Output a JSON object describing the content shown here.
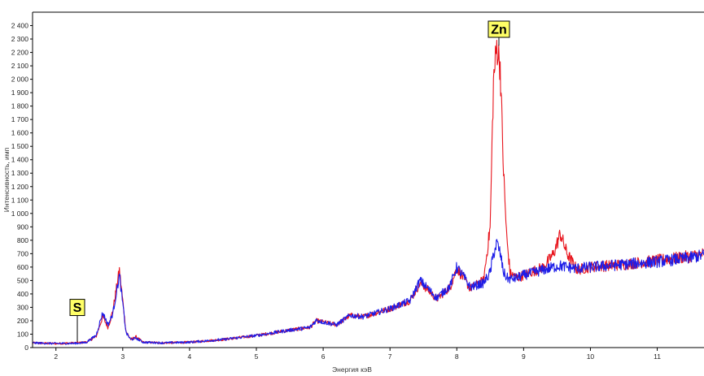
{
  "chart_data": {
    "type": "line",
    "title": "",
    "xlabel": "Энергия кэВ",
    "ylabel": "Интенсивность, имп",
    "xlim": [
      1.65,
      11.7
    ],
    "ylim": [
      0,
      2500
    ],
    "x_ticks": [
      2,
      3,
      4,
      5,
      6,
      7,
      8,
      9,
      10,
      11
    ],
    "y_ticks": [
      0,
      100,
      200,
      300,
      400,
      500,
      600,
      700,
      800,
      900,
      1000,
      1100,
      1200,
      1300,
      1400,
      1500,
      1600,
      1700,
      1800,
      1900,
      2000,
      2100,
      2200,
      2300,
      2400
    ],
    "y_tick_labels": [
      "0",
      "100",
      "200",
      "300",
      "400",
      "500",
      "600",
      "700",
      "800",
      "900",
      "1 000",
      "1 100",
      "1 200",
      "1 300",
      "1 400",
      "1 500",
      "1 600",
      "1 700",
      "1 800",
      "1 900",
      "2 000",
      "2 100",
      "2 200",
      "2 300",
      "2 400"
    ],
    "grid": false,
    "series": [
      {
        "color": "#e8141c",
        "x": [
          1.65,
          2.0,
          2.3,
          2.45,
          2.6,
          2.7,
          2.78,
          2.85,
          2.95,
          3.05,
          3.12,
          3.2,
          3.3,
          3.6,
          4.0,
          4.5,
          5.0,
          5.5,
          5.8,
          5.9,
          6.0,
          6.2,
          6.4,
          6.6,
          7.0,
          7.3,
          7.45,
          7.55,
          7.7,
          7.9,
          8.0,
          8.1,
          8.2,
          8.4,
          8.5,
          8.55,
          8.6,
          8.65,
          8.7,
          8.75,
          8.8,
          8.9,
          9.0,
          9.3,
          9.45,
          9.55,
          9.65,
          9.8,
          10.0,
          10.5,
          11.0,
          11.5,
          11.7
        ],
        "y": [
          35,
          30,
          35,
          40,
          80,
          230,
          150,
          270,
          580,
          120,
          60,
          80,
          40,
          35,
          40,
          60,
          90,
          130,
          150,
          200,
          190,
          170,
          240,
          230,
          290,
          350,
          480,
          440,
          360,
          450,
          590,
          520,
          440,
          500,
          900,
          2000,
          2250,
          2100,
          1300,
          800,
          550,
          520,
          540,
          600,
          700,
          850,
          700,
          580,
          600,
          620,
          650,
          680,
          700
        ]
      },
      {
        "color": "#1c1ce8",
        "x": [
          1.65,
          2.0,
          2.3,
          2.45,
          2.6,
          2.7,
          2.78,
          2.85,
          2.95,
          3.05,
          3.12,
          3.2,
          3.3,
          3.6,
          4.0,
          4.5,
          5.0,
          5.5,
          5.8,
          5.9,
          6.0,
          6.2,
          6.4,
          6.6,
          7.0,
          7.3,
          7.45,
          7.55,
          7.7,
          7.9,
          8.0,
          8.1,
          8.2,
          8.4,
          8.5,
          8.55,
          8.6,
          8.65,
          8.7,
          8.75,
          8.8,
          8.9,
          9.0,
          9.3,
          9.45,
          9.55,
          9.65,
          9.8,
          10.0,
          10.5,
          11.0,
          11.5,
          11.7
        ],
        "y": [
          35,
          30,
          32,
          38,
          90,
          260,
          170,
          250,
          540,
          110,
          60,
          70,
          40,
          35,
          40,
          60,
          90,
          130,
          150,
          205,
          190,
          170,
          240,
          230,
          290,
          350,
          500,
          450,
          370,
          460,
          600,
          530,
          450,
          480,
          560,
          700,
          780,
          700,
          560,
          520,
          510,
          520,
          540,
          580,
          600,
          610,
          600,
          590,
          600,
          620,
          640,
          670,
          690
        ]
      }
    ],
    "annotations": [
      {
        "text": "S",
        "x": 2.32,
        "y": 45
      },
      {
        "text": "Zn",
        "x": 8.63,
        "y": 2250
      }
    ]
  }
}
